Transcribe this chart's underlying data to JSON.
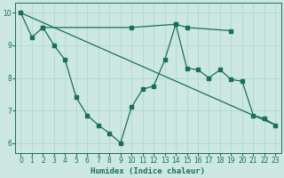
{
  "xlabel": "Humidex (Indice chaleur)",
  "bg_color": "#cce8e0",
  "grid_color": "#b0d8cc",
  "line_color": "#1a6e60",
  "xlim": [
    -0.5,
    23.5
  ],
  "ylim": [
    5.7,
    10.3
  ],
  "xticks": [
    0,
    1,
    2,
    3,
    4,
    5,
    6,
    7,
    8,
    9,
    10,
    11,
    12,
    13,
    14,
    15,
    16,
    17,
    18,
    19,
    20,
    21,
    22,
    23
  ],
  "yticks": [
    6,
    7,
    8,
    9,
    10
  ],
  "line_zigzag": {
    "x": [
      0,
      1,
      2,
      3,
      4,
      5,
      6,
      7,
      8,
      9,
      10,
      11,
      12,
      13,
      14,
      15,
      16,
      17,
      18,
      19,
      20,
      21,
      22,
      23
    ],
    "y": [
      10.0,
      9.25,
      9.55,
      9.0,
      8.55,
      7.4,
      6.85,
      6.55,
      6.3,
      6.0,
      7.1,
      7.65,
      7.75,
      8.55,
      9.65,
      8.3,
      8.25,
      8.0,
      8.25,
      7.95,
      7.9,
      6.85,
      6.75,
      6.55
    ]
  },
  "line_horiz": {
    "x": [
      2,
      10,
      14,
      15,
      19
    ],
    "y": [
      9.55,
      9.55,
      9.65,
      9.55,
      9.45
    ]
  },
  "line_diag": {
    "x": [
      0,
      23
    ],
    "y": [
      10.0,
      6.55
    ]
  },
  "markersize": 2.5,
  "linewidth": 0.9
}
